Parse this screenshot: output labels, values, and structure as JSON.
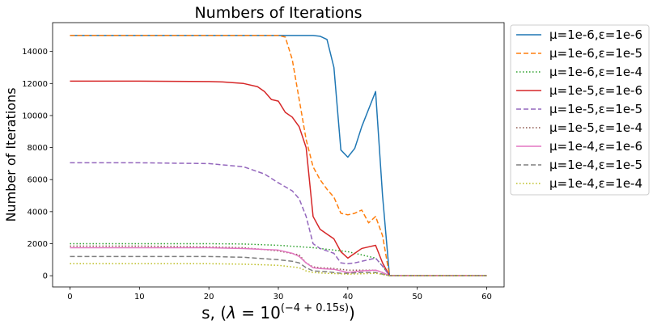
{
  "chart_data": {
    "type": "line",
    "title": "Numbers of Iterations",
    "xlabel": "s, (",
    "xlabel_lambda": "λ",
    "xlabel_eq": " = 10",
    "xlabel_exp": "(−4 + 0.15s)",
    "xlabel_close": ")",
    "ylabel": "Number of Iterations",
    "xlim": [
      -2.5,
      62.5
    ],
    "ylim": [
      -700,
      15800
    ],
    "xticks": [
      0,
      10,
      20,
      30,
      40,
      50,
      60
    ],
    "yticks": [
      0,
      2000,
      4000,
      6000,
      8000,
      10000,
      12000,
      14000
    ],
    "legend_position": "outside-right",
    "series": [
      {
        "name": "μ=1e-6,ε=1e-6",
        "color": "#1f77b4",
        "style": "solid",
        "points": [
          [
            0,
            15000
          ],
          [
            10,
            15000
          ],
          [
            20,
            15000
          ],
          [
            30,
            15000
          ],
          [
            33,
            15000
          ],
          [
            35,
            15000
          ],
          [
            36,
            14950
          ],
          [
            37,
            14750
          ],
          [
            38,
            13000
          ],
          [
            39,
            7850
          ],
          [
            40,
            7400
          ],
          [
            41,
            7950
          ],
          [
            42,
            9300
          ],
          [
            43,
            10400
          ],
          [
            44,
            11500
          ],
          [
            45,
            5000
          ],
          [
            46,
            0
          ],
          [
            47,
            0
          ],
          [
            50,
            0
          ],
          [
            60,
            0
          ]
        ]
      },
      {
        "name": "μ=1e-6,ε=1e-5",
        "color": "#ff7f0e",
        "style": "dashed",
        "points": [
          [
            0,
            15000
          ],
          [
            10,
            15000
          ],
          [
            20,
            15000
          ],
          [
            30,
            15000
          ],
          [
            31,
            14900
          ],
          [
            32,
            13500
          ],
          [
            33,
            11000
          ],
          [
            34,
            8500
          ],
          [
            35,
            6800
          ],
          [
            36,
            6000
          ],
          [
            37,
            5400
          ],
          [
            38,
            4900
          ],
          [
            39,
            3900
          ],
          [
            40,
            3800
          ],
          [
            41,
            3900
          ],
          [
            42,
            4100
          ],
          [
            43,
            3300
          ],
          [
            44,
            3700
          ],
          [
            45,
            2500
          ],
          [
            46,
            0
          ],
          [
            47,
            0
          ],
          [
            50,
            0
          ],
          [
            60,
            0
          ]
        ]
      },
      {
        "name": "μ=1e-6,ε=1e-4",
        "color": "#2ca02c",
        "style": "dotted",
        "points": [
          [
            0,
            2000
          ],
          [
            10,
            2000
          ],
          [
            20,
            2000
          ],
          [
            25,
            1980
          ],
          [
            30,
            1900
          ],
          [
            35,
            1750
          ],
          [
            38,
            1600
          ],
          [
            40,
            1500
          ],
          [
            42,
            1300
          ],
          [
            44,
            1100
          ],
          [
            45,
            600
          ],
          [
            46,
            0
          ],
          [
            50,
            0
          ],
          [
            60,
            0
          ]
        ]
      },
      {
        "name": "μ=1e-5,ε=1e-6",
        "color": "#d62728",
        "style": "solid",
        "points": [
          [
            0,
            12150
          ],
          [
            10,
            12150
          ],
          [
            20,
            12120
          ],
          [
            22,
            12100
          ],
          [
            25,
            12000
          ],
          [
            27,
            11800
          ],
          [
            28,
            11500
          ],
          [
            29,
            11000
          ],
          [
            30,
            10900
          ],
          [
            31,
            10200
          ],
          [
            32,
            9900
          ],
          [
            33,
            9300
          ],
          [
            34,
            8000
          ],
          [
            35,
            3700
          ],
          [
            36,
            2900
          ],
          [
            37,
            2600
          ],
          [
            38,
            2300
          ],
          [
            39,
            1500
          ],
          [
            40,
            1100
          ],
          [
            41,
            1400
          ],
          [
            42,
            1700
          ],
          [
            43,
            1800
          ],
          [
            44,
            1900
          ],
          [
            45,
            800
          ],
          [
            46,
            0
          ],
          [
            50,
            0
          ],
          [
            60,
            0
          ]
        ]
      },
      {
        "name": "μ=1e-5,ε=1e-5",
        "color": "#9467bd",
        "style": "dashed",
        "points": [
          [
            0,
            7050
          ],
          [
            10,
            7050
          ],
          [
            20,
            7000
          ],
          [
            25,
            6800
          ],
          [
            28,
            6350
          ],
          [
            30,
            5800
          ],
          [
            32,
            5300
          ],
          [
            33,
            4800
          ],
          [
            34,
            3700
          ],
          [
            35,
            2000
          ],
          [
            36,
            1700
          ],
          [
            37,
            1550
          ],
          [
            38,
            1400
          ],
          [
            39,
            800
          ],
          [
            40,
            750
          ],
          [
            41,
            800
          ],
          [
            42,
            900
          ],
          [
            43,
            1000
          ],
          [
            44,
            1100
          ],
          [
            45,
            600
          ],
          [
            46,
            0
          ],
          [
            50,
            0
          ],
          [
            60,
            0
          ]
        ]
      },
      {
        "name": "μ=1e-5,ε=1e-4",
        "color": "#8c564b",
        "style": "dotted",
        "points": [
          [
            0,
            1850
          ],
          [
            10,
            1850
          ],
          [
            20,
            1800
          ],
          [
            25,
            1750
          ],
          [
            30,
            1550
          ],
          [
            33,
            1300
          ],
          [
            34,
            800
          ],
          [
            35,
            550
          ],
          [
            36,
            500
          ],
          [
            38,
            450
          ],
          [
            40,
            350
          ],
          [
            42,
            350
          ],
          [
            44,
            350
          ],
          [
            45,
            200
          ],
          [
            46,
            0
          ],
          [
            50,
            0
          ],
          [
            60,
            0
          ]
        ]
      },
      {
        "name": "μ=1e-4,ε=1e-6",
        "color": "#e377c2",
        "style": "solid",
        "points": [
          [
            0,
            1750
          ],
          [
            10,
            1750
          ],
          [
            20,
            1750
          ],
          [
            25,
            1700
          ],
          [
            30,
            1600
          ],
          [
            32,
            1400
          ],
          [
            33,
            1200
          ],
          [
            34,
            800
          ],
          [
            35,
            500
          ],
          [
            36,
            450
          ],
          [
            38,
            400
          ],
          [
            40,
            200
          ],
          [
            42,
            300
          ],
          [
            44,
            350
          ],
          [
            45,
            200
          ],
          [
            46,
            0
          ],
          [
            50,
            0
          ],
          [
            60,
            0
          ]
        ]
      },
      {
        "name": "μ=1e-4,ε=1e-5",
        "color": "#7f7f7f",
        "style": "dashed",
        "points": [
          [
            0,
            1200
          ],
          [
            10,
            1200
          ],
          [
            20,
            1200
          ],
          [
            25,
            1150
          ],
          [
            30,
            1000
          ],
          [
            32,
            900
          ],
          [
            33,
            800
          ],
          [
            34,
            500
          ],
          [
            35,
            300
          ],
          [
            37,
            250
          ],
          [
            39,
            150
          ],
          [
            40,
            150
          ],
          [
            42,
            200
          ],
          [
            44,
            200
          ],
          [
            45,
            100
          ],
          [
            46,
            0
          ],
          [
            50,
            0
          ],
          [
            60,
            0
          ]
        ]
      },
      {
        "name": "μ=1e-4,ε=1e-4",
        "color": "#bcbd22",
        "style": "dotted",
        "points": [
          [
            0,
            750
          ],
          [
            10,
            750
          ],
          [
            20,
            750
          ],
          [
            25,
            720
          ],
          [
            30,
            650
          ],
          [
            33,
            500
          ],
          [
            34,
            300
          ],
          [
            35,
            200
          ],
          [
            37,
            150
          ],
          [
            40,
            100
          ],
          [
            42,
            120
          ],
          [
            44,
            150
          ],
          [
            45,
            80
          ],
          [
            46,
            0
          ],
          [
            50,
            0
          ],
          [
            60,
            0
          ]
        ]
      }
    ]
  }
}
